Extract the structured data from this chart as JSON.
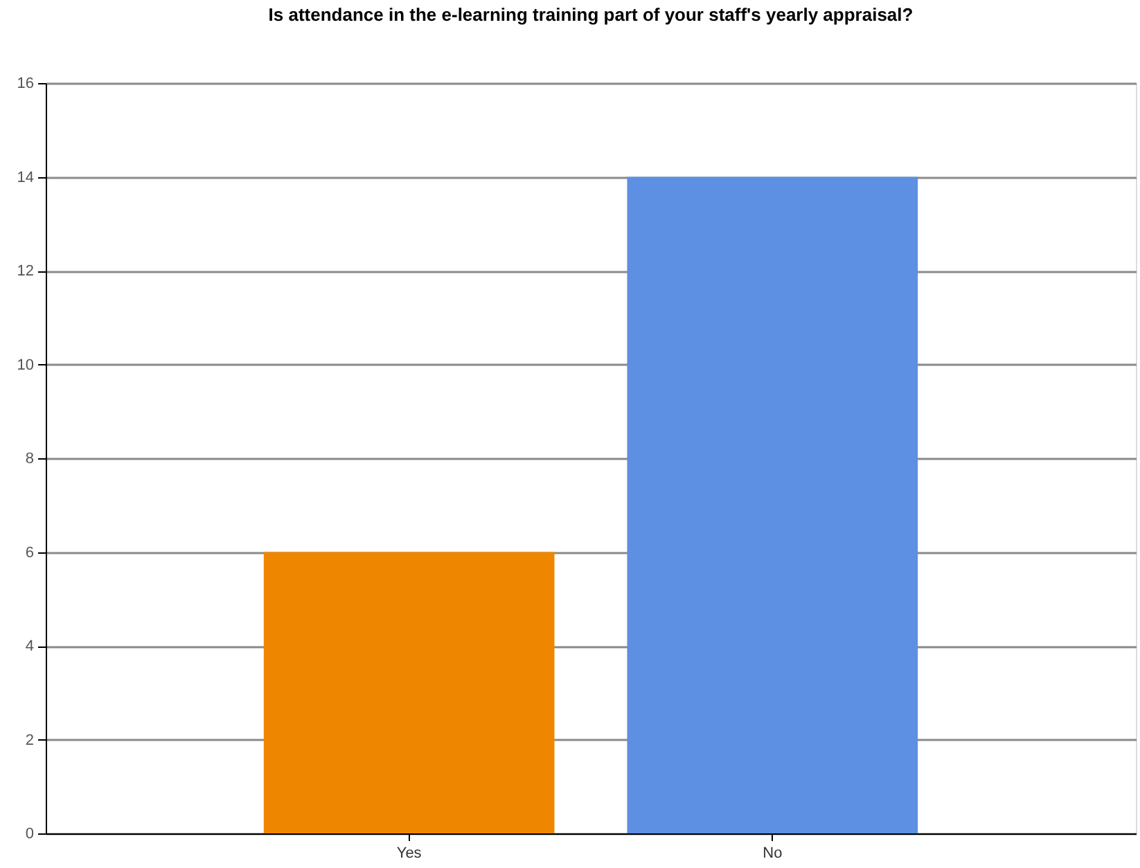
{
  "chart_data": {
    "type": "bar",
    "title": "Is attendance in the e-learning training part of your staff's yearly appraisal?",
    "categories": [
      "Yes",
      "No"
    ],
    "values": [
      6,
      14
    ],
    "colors": [
      "#ee8600",
      "#5d8fe2"
    ],
    "ylim": [
      0,
      16
    ],
    "yticks": [
      0,
      2,
      4,
      6,
      8,
      10,
      12,
      14,
      16
    ],
    "grid": "y"
  }
}
